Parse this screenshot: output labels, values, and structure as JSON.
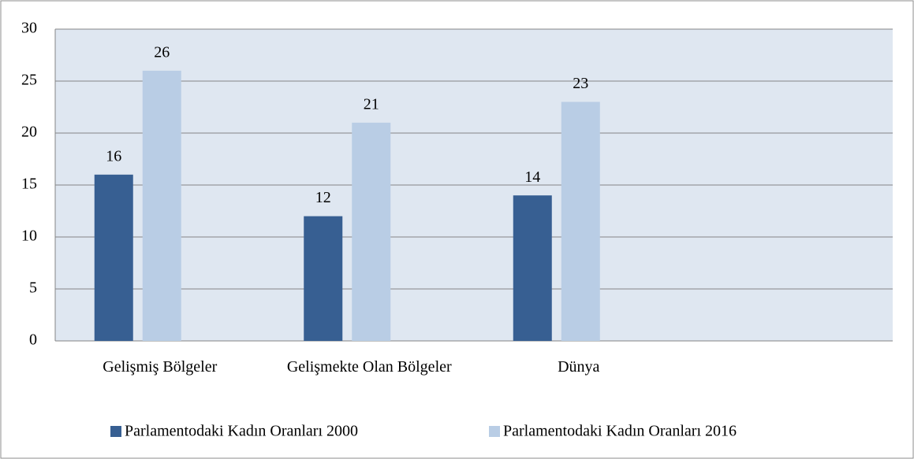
{
  "chart_data": {
    "type": "bar",
    "categories": [
      "Gelişmiş Bölgeler",
      "Gelişmekte Olan Bölgeler",
      "Dünya",
      null
    ],
    "series": [
      {
        "name": "Parlamentodaki Kadın Oranları 2000",
        "color": "#375f92",
        "values": [
          16,
          12,
          14,
          null
        ]
      },
      {
        "name": "Parlamentodaki Kadın Oranları 2016",
        "color": "#b9cde5",
        "values": [
          26,
          21,
          23,
          null
        ]
      }
    ],
    "ylim": [
      0,
      30
    ],
    "yticks": [
      0,
      5,
      10,
      15,
      20,
      25,
      30
    ],
    "grid": true,
    "legend": "bottom"
  }
}
